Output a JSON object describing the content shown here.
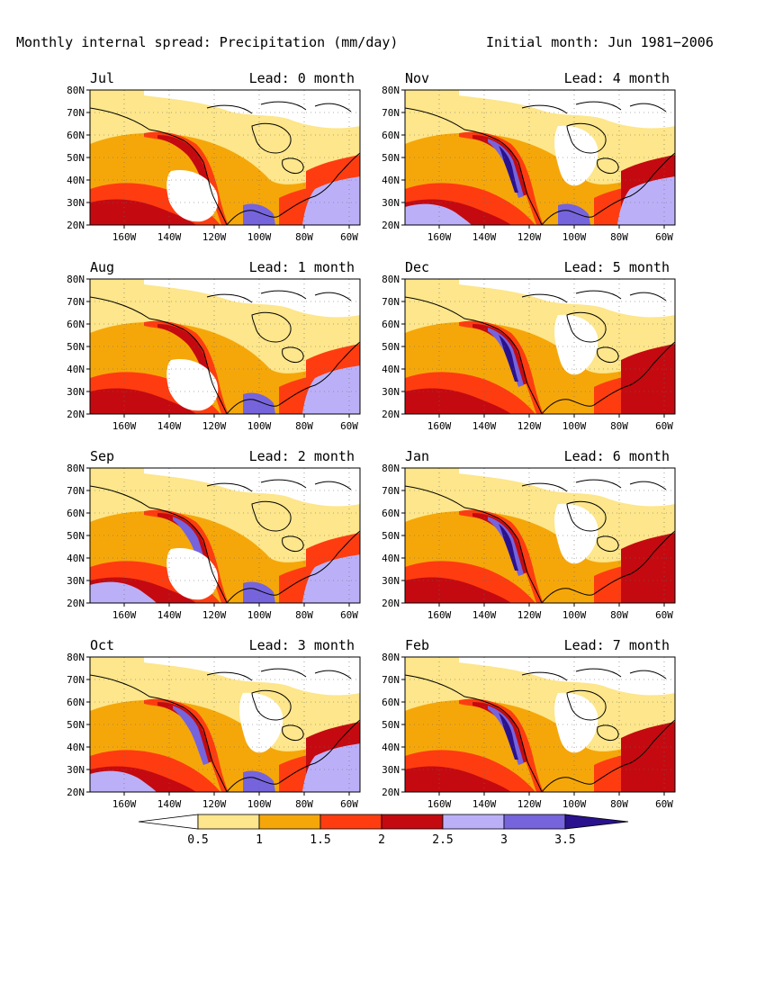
{
  "header": {
    "title": "Monthly internal spread: Precipitation (mm/day)",
    "initial": "Initial month: Jun 1981−2006"
  },
  "axes": {
    "lat_labels": [
      "80N",
      "70N",
      "60N",
      "50N",
      "40N",
      "30N",
      "20N"
    ],
    "lon_labels": [
      "160W",
      "140W",
      "120W",
      "100W",
      "80W",
      "60W"
    ]
  },
  "panels": [
    {
      "month": "Jul",
      "lead": "Lead: 0 month"
    },
    {
      "month": "Nov",
      "lead": "Lead: 4 month"
    },
    {
      "month": "Aug",
      "lead": "Lead: 1 month"
    },
    {
      "month": "Dec",
      "lead": "Lead: 5 month"
    },
    {
      "month": "Sep",
      "lead": "Lead: 2 month"
    },
    {
      "month": "Jan",
      "lead": "Lead: 6 month"
    },
    {
      "month": "Oct",
      "lead": "Lead: 3 month"
    },
    {
      "month": "Feb",
      "lead": "Lead: 7 month"
    }
  ],
  "colorbar": {
    "labels": [
      "0.5",
      "1",
      "1.5",
      "2",
      "2.5",
      "3",
      "3.5"
    ],
    "colors": [
      "#ffffff",
      "#fde68b",
      "#f5a70a",
      "#ff3c10",
      "#c40a10",
      "#bbb0f8",
      "#7664dc",
      "#2a128e"
    ]
  },
  "colors": {
    "white": "#ffffff",
    "yellow": "#fde68b",
    "orange": "#f5a70a",
    "redorange": "#ff3c10",
    "darkred": "#c40a10",
    "lavender": "#bbb0f8",
    "purple": "#7664dc",
    "navy": "#2a128e"
  }
}
